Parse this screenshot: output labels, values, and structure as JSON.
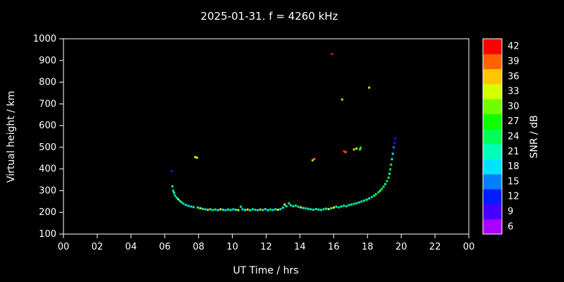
{
  "colors": {
    "background": "#000000",
    "foreground": "#ffffff",
    "frame": "#ffffff"
  },
  "chart_data": {
    "type": "scatter",
    "title": "2025-01-31. f = 4260 kHz",
    "xlabel": "UT Time / hrs",
    "ylabel": "Virtual height / km",
    "colorbar_label": "SNR / dB",
    "xlim": [
      0,
      24
    ],
    "ylim": [
      100,
      1000
    ],
    "snr_range": [
      6,
      42
    ],
    "grid": false,
    "legend": "colorbar-right",
    "x_ticks": [
      0,
      2,
      4,
      6,
      8,
      10,
      12,
      14,
      16,
      18,
      20,
      22,
      24
    ],
    "x_tick_labels": [
      "00",
      "02",
      "04",
      "06",
      "08",
      "10",
      "12",
      "14",
      "16",
      "18",
      "20",
      "22",
      "00"
    ],
    "y_ticks": [
      100,
      200,
      300,
      400,
      500,
      600,
      700,
      800,
      900,
      1000
    ],
    "colorbar_ticks": [
      6,
      9,
      12,
      15,
      18,
      21,
      24,
      27,
      30,
      33,
      36,
      39,
      42
    ],
    "points_format": [
      "ut_hours",
      "virtual_height_km",
      "snr_db"
    ],
    "points": [
      [
        6.4,
        390,
        12
      ],
      [
        6.45,
        320,
        21
      ],
      [
        6.5,
        300,
        24
      ],
      [
        6.55,
        290,
        21
      ],
      [
        6.6,
        278,
        18
      ],
      [
        6.7,
        268,
        21
      ],
      [
        6.8,
        260,
        33
      ],
      [
        6.9,
        252,
        21
      ],
      [
        7.0,
        246,
        18
      ],
      [
        7.1,
        240,
        24
      ],
      [
        7.25,
        234,
        21
      ],
      [
        7.4,
        230,
        18
      ],
      [
        7.55,
        227,
        21
      ],
      [
        7.7,
        224,
        24
      ],
      [
        7.8,
        455,
        36
      ],
      [
        7.9,
        452,
        33
      ],
      [
        7.95,
        222,
        21
      ],
      [
        8.1,
        219,
        33
      ],
      [
        8.25,
        216,
        21
      ],
      [
        8.4,
        214,
        18
      ],
      [
        8.55,
        212,
        36
      ],
      [
        8.7,
        214,
        21
      ],
      [
        8.85,
        211,
        24
      ],
      [
        9.0,
        213,
        18
      ],
      [
        9.15,
        210,
        21
      ],
      [
        9.3,
        214,
        33
      ],
      [
        9.45,
        212,
        21
      ],
      [
        9.6,
        210,
        18
      ],
      [
        9.75,
        213,
        21
      ],
      [
        9.9,
        211,
        24
      ],
      [
        10.05,
        214,
        18
      ],
      [
        10.2,
        212,
        21
      ],
      [
        10.35,
        210,
        33
      ],
      [
        10.5,
        226,
        24
      ],
      [
        10.6,
        214,
        18
      ],
      [
        10.75,
        211,
        21
      ],
      [
        10.9,
        213,
        33
      ],
      [
        11.05,
        210,
        18
      ],
      [
        11.2,
        214,
        21
      ],
      [
        11.35,
        212,
        24
      ],
      [
        11.5,
        210,
        18
      ],
      [
        11.65,
        213,
        36
      ],
      [
        11.8,
        211,
        21
      ],
      [
        11.95,
        215,
        18
      ],
      [
        12.1,
        210,
        21
      ],
      [
        12.25,
        213,
        24
      ],
      [
        12.4,
        211,
        18
      ],
      [
        12.55,
        214,
        21
      ],
      [
        12.7,
        212,
        33
      ],
      [
        12.85,
        215,
        18
      ],
      [
        13.0,
        222,
        21
      ],
      [
        13.1,
        236,
        33
      ],
      [
        13.2,
        228,
        21
      ],
      [
        13.35,
        242,
        24
      ],
      [
        13.45,
        233,
        18
      ],
      [
        13.6,
        228,
        21
      ],
      [
        13.75,
        231,
        24
      ],
      [
        13.9,
        226,
        18
      ],
      [
        14.05,
        223,
        33
      ],
      [
        14.2,
        220,
        21
      ],
      [
        14.35,
        218,
        24
      ],
      [
        14.5,
        216,
        18
      ],
      [
        14.65,
        214,
        21
      ],
      [
        14.75,
        440,
        36
      ],
      [
        14.85,
        446,
        39
      ],
      [
        14.8,
        212,
        24
      ],
      [
        14.95,
        215,
        18
      ],
      [
        15.1,
        213,
        21
      ],
      [
        15.25,
        211,
        24
      ],
      [
        15.4,
        214,
        18
      ],
      [
        15.55,
        217,
        21
      ],
      [
        15.7,
        215,
        33
      ],
      [
        15.85,
        219,
        21
      ],
      [
        15.9,
        930,
        42
      ],
      [
        16.0,
        222,
        33
      ],
      [
        16.15,
        226,
        21
      ],
      [
        16.3,
        223,
        24
      ],
      [
        16.45,
        227,
        21
      ],
      [
        16.5,
        720,
        36
      ],
      [
        16.6,
        482,
        42
      ],
      [
        16.7,
        478,
        39
      ],
      [
        16.6,
        230,
        18
      ],
      [
        16.75,
        228,
        24
      ],
      [
        16.9,
        233,
        21
      ],
      [
        17.05,
        236,
        18
      ],
      [
        17.2,
        490,
        36
      ],
      [
        17.2,
        239,
        24
      ],
      [
        17.35,
        494,
        33
      ],
      [
        17.35,
        242,
        21
      ],
      [
        17.5,
        246,
        18
      ],
      [
        17.55,
        490,
        24
      ],
      [
        17.6,
        498,
        27
      ],
      [
        17.65,
        250,
        21
      ],
      [
        17.8,
        254,
        24
      ],
      [
        17.95,
        259,
        21
      ],
      [
        18.1,
        264,
        18
      ],
      [
        18.1,
        775,
        36
      ],
      [
        18.25,
        270,
        24
      ],
      [
        18.4,
        277,
        21
      ],
      [
        18.5,
        284,
        27
      ],
      [
        18.65,
        292,
        24
      ],
      [
        18.75,
        300,
        21
      ],
      [
        18.85,
        308,
        27
      ],
      [
        18.95,
        318,
        24
      ],
      [
        19.05,
        330,
        21
      ],
      [
        19.15,
        344,
        27
      ],
      [
        19.25,
        360,
        24
      ],
      [
        19.3,
        378,
        21
      ],
      [
        19.35,
        398,
        27
      ],
      [
        19.4,
        420,
        24
      ],
      [
        19.45,
        445,
        21
      ],
      [
        19.5,
        470,
        18
      ],
      [
        19.55,
        500,
        15
      ],
      [
        19.6,
        520,
        9
      ],
      [
        19.65,
        540,
        12
      ]
    ]
  }
}
